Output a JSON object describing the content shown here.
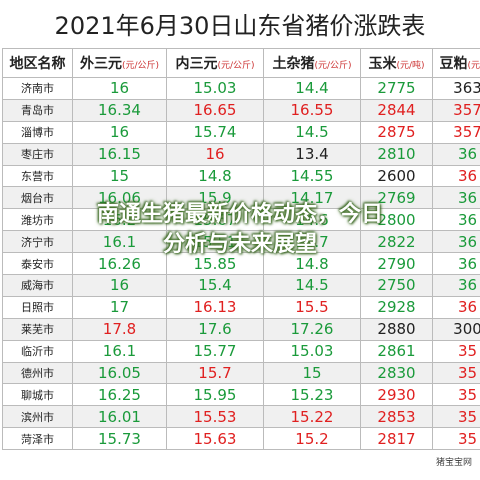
{
  "title": "2021年6月30日山东省猪价涨跌表",
  "header": [
    {
      "name": "地区名称"
    },
    {
      "name": "外三元",
      "unit": "(元/公斤)"
    },
    {
      "name": "内三元",
      "unit": "(元/公斤)"
    },
    {
      "name": "土杂猪",
      "unit": "(元/公斤)"
    },
    {
      "name": "玉米",
      "unit": "(元/吨)"
    },
    {
      "name": "豆粕",
      "unit": "(元/吨)"
    }
  ],
  "rows": [
    {
      "region": "济南市",
      "cells": [
        {
          "text": "16",
          "color": "#1a9a3a"
        },
        {
          "text": "15.03",
          "color": "#1a9a3a"
        },
        {
          "text": "14.4",
          "color": "#1a9a3a"
        },
        {
          "text": "2775",
          "color": "#1a9a3a"
        },
        {
          "text": "363",
          "color": "#222"
        }
      ]
    },
    {
      "region": "青岛市",
      "cells": [
        {
          "text": "16.34",
          "color": "#1a9a3a"
        },
        {
          "text": "16.65",
          "color": "#e02020"
        },
        {
          "text": "16.55",
          "color": "#e02020"
        },
        {
          "text": "2844",
          "color": "#e02020"
        },
        {
          "text": "357",
          "color": "#e02020"
        }
      ]
    },
    {
      "region": "淄博市",
      "cells": [
        {
          "text": "16",
          "color": "#1a9a3a"
        },
        {
          "text": "15.74",
          "color": "#1a9a3a"
        },
        {
          "text": "14.5",
          "color": "#1a9a3a"
        },
        {
          "text": "2875",
          "color": "#e02020"
        },
        {
          "text": "357",
          "color": "#e02020"
        }
      ]
    },
    {
      "region": "枣庄市",
      "cells": [
        {
          "text": "16.15",
          "color": "#1a9a3a"
        },
        {
          "text": "16",
          "color": "#e02020"
        },
        {
          "text": "13.4",
          "color": "#222"
        },
        {
          "text": "2810",
          "color": "#1a9a3a"
        },
        {
          "text": "36",
          "color": "#1a9a3a"
        }
      ]
    },
    {
      "region": "东营市",
      "cells": [
        {
          "text": "15",
          "color": "#1a9a3a"
        },
        {
          "text": "14.8",
          "color": "#1a9a3a"
        },
        {
          "text": "14.55",
          "color": "#1a9a3a"
        },
        {
          "text": "2600",
          "color": "#222"
        },
        {
          "text": "36",
          "color": "#e02020"
        }
      ]
    },
    {
      "region": "烟台市",
      "cells": [
        {
          "text": "16.06",
          "color": "#1a9a3a"
        },
        {
          "text": "15.9",
          "color": "#1a9a3a"
        },
        {
          "text": "14.17",
          "color": "#1a9a3a"
        },
        {
          "text": "2769",
          "color": "#1a9a3a"
        },
        {
          "text": "36",
          "color": "#1a9a3a"
        }
      ]
    },
    {
      "region": "潍坊市",
      "cells": [
        {
          "text": "16.2",
          "color": "#1a9a3a"
        },
        {
          "text": "15.67",
          "color": "#1a9a3a"
        },
        {
          "text": "14.6",
          "color": "#1a9a3a"
        },
        {
          "text": "2800",
          "color": "#1a9a3a"
        },
        {
          "text": "36",
          "color": "#1a9a3a"
        }
      ]
    },
    {
      "region": "济宁市",
      "cells": [
        {
          "text": "16.1",
          "color": "#1a9a3a"
        },
        {
          "text": "15.51",
          "color": "#1a9a3a"
        },
        {
          "text": "14.7",
          "color": "#1a9a3a"
        },
        {
          "text": "2822",
          "color": "#1a9a3a"
        },
        {
          "text": "36",
          "color": "#1a9a3a"
        }
      ]
    },
    {
      "region": "泰安市",
      "cells": [
        {
          "text": "16.26",
          "color": "#1a9a3a"
        },
        {
          "text": "15.85",
          "color": "#1a9a3a"
        },
        {
          "text": "14.8",
          "color": "#1a9a3a"
        },
        {
          "text": "2790",
          "color": "#1a9a3a"
        },
        {
          "text": "36",
          "color": "#1a9a3a"
        }
      ]
    },
    {
      "region": "威海市",
      "cells": [
        {
          "text": "16",
          "color": "#1a9a3a"
        },
        {
          "text": "15.4",
          "color": "#1a9a3a"
        },
        {
          "text": "14.5",
          "color": "#1a9a3a"
        },
        {
          "text": "2750",
          "color": "#1a9a3a"
        },
        {
          "text": "36",
          "color": "#1a9a3a"
        }
      ]
    },
    {
      "region": "日照市",
      "cells": [
        {
          "text": "17",
          "color": "#1a9a3a"
        },
        {
          "text": "16.13",
          "color": "#e02020"
        },
        {
          "text": "15.5",
          "color": "#e02020"
        },
        {
          "text": "2928",
          "color": "#1a9a3a"
        },
        {
          "text": "36",
          "color": "#e02020"
        }
      ]
    },
    {
      "region": "莱芜市",
      "cells": [
        {
          "text": "17.8",
          "color": "#e02020"
        },
        {
          "text": "17.6",
          "color": "#1a9a3a"
        },
        {
          "text": "17.26",
          "color": "#1a9a3a"
        },
        {
          "text": "2880",
          "color": "#222"
        },
        {
          "text": "300",
          "color": "#222"
        }
      ]
    },
    {
      "region": "临沂市",
      "cells": [
        {
          "text": "16.1",
          "color": "#1a9a3a"
        },
        {
          "text": "15.77",
          "color": "#1a9a3a"
        },
        {
          "text": "15.03",
          "color": "#1a9a3a"
        },
        {
          "text": "2861",
          "color": "#1a9a3a"
        },
        {
          "text": "35",
          "color": "#e02020"
        }
      ]
    },
    {
      "region": "德州市",
      "cells": [
        {
          "text": "16.05",
          "color": "#1a9a3a"
        },
        {
          "text": "15.7",
          "color": "#e02020"
        },
        {
          "text": "15",
          "color": "#1a9a3a"
        },
        {
          "text": "2830",
          "color": "#1a9a3a"
        },
        {
          "text": "35",
          "color": "#e02020"
        }
      ]
    },
    {
      "region": "聊城市",
      "cells": [
        {
          "text": "16.25",
          "color": "#1a9a3a"
        },
        {
          "text": "15.95",
          "color": "#1a9a3a"
        },
        {
          "text": "15.23",
          "color": "#1a9a3a"
        },
        {
          "text": "2930",
          "color": "#e02020"
        },
        {
          "text": "35",
          "color": "#e02020"
        }
      ]
    },
    {
      "region": "滨州市",
      "cells": [
        {
          "text": "16.01",
          "color": "#1a9a3a"
        },
        {
          "text": "15.53",
          "color": "#e02020"
        },
        {
          "text": "15.22",
          "color": "#e02020"
        },
        {
          "text": "2853",
          "color": "#e02020"
        },
        {
          "text": "35",
          "color": "#e02020"
        }
      ]
    },
    {
      "region": "菏泽市",
      "cells": [
        {
          "text": "15.73",
          "color": "#1a9a3a"
        },
        {
          "text": "15.63",
          "color": "#e02020"
        },
        {
          "text": "15.2",
          "color": "#e02020"
        },
        {
          "text": "2817",
          "color": "#e02020"
        },
        {
          "text": "35",
          "color": "#e02020"
        }
      ]
    }
  ],
  "footer": "猪宝宝网",
  "overlay": [
    "南通生猪最新价格动态，今日",
    "分析与未来展望"
  ]
}
